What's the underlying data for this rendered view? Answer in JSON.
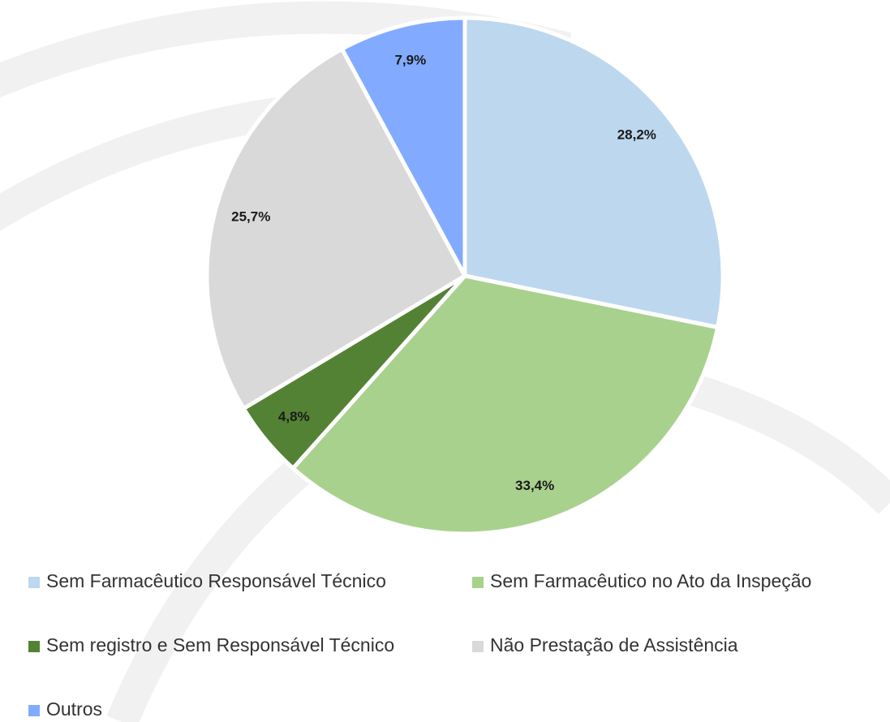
{
  "chart_data": {
    "type": "pie",
    "categories": [
      "Sem Farmacêutico Responsável Técnico",
      "Sem Farmacêutico no Ato da Inspeção",
      "Sem registro e Sem Responsável Técnico",
      "Não Prestação de Assistência",
      "Outros"
    ],
    "values": [
      28.2,
      33.4,
      4.8,
      25.7,
      7.9
    ],
    "value_labels": [
      "28,2%",
      "33,4%",
      "4,8%",
      "25,7%",
      "7,9%"
    ],
    "colors": [
      "#bdd7ee",
      "#a9d18e",
      "#548235",
      "#d9d9d9",
      "#82abff"
    ],
    "legend": "bottom"
  }
}
